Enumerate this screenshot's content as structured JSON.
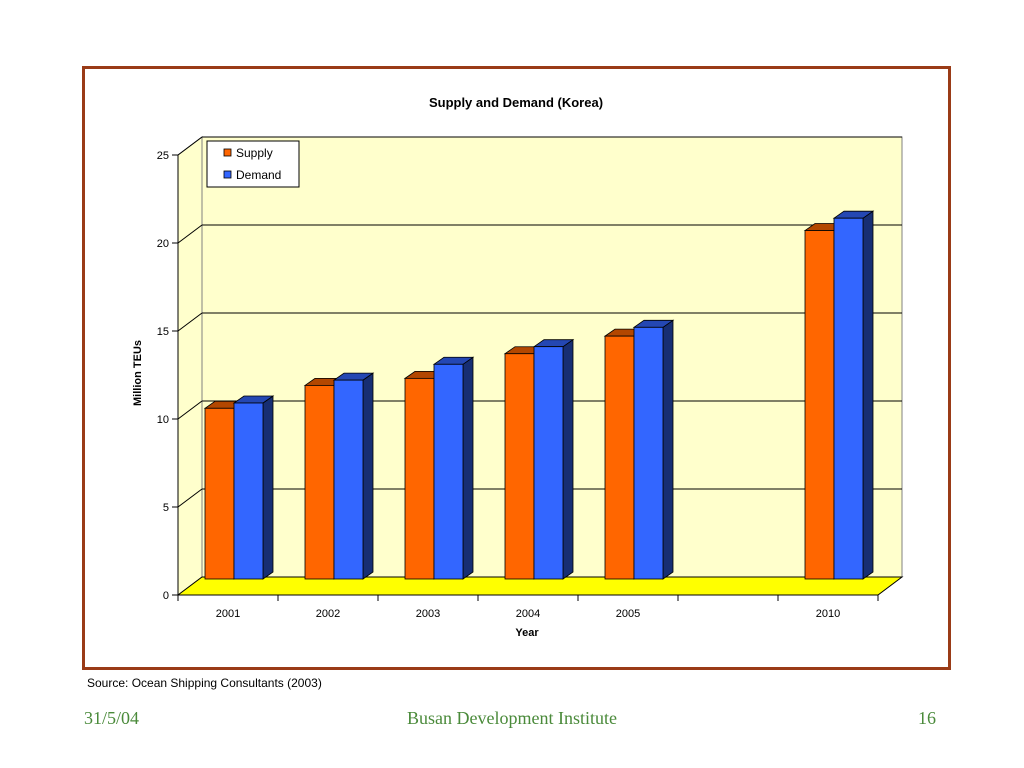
{
  "chart_data": {
    "type": "bar",
    "title": "Supply and Demand (Korea)",
    "xlabel": "Year",
    "ylabel": "Million TEUs",
    "categories": [
      "2001",
      "2002",
      "2003",
      "2004",
      "2005",
      "",
      "2010"
    ],
    "series": [
      {
        "name": "Supply",
        "values": [
          9.7,
          11.0,
          11.4,
          12.8,
          13.8,
          null,
          19.8
        ],
        "color": "#ff6600"
      },
      {
        "name": "Demand",
        "values": [
          10.0,
          11.3,
          12.2,
          13.2,
          14.3,
          null,
          20.5
        ],
        "color": "#3366ff"
      }
    ],
    "ylim": [
      0,
      25
    ],
    "yticks": [
      "0",
      "5",
      "10",
      "15",
      "20",
      "25"
    ],
    "grid": true,
    "legend": "top-left",
    "colors": {
      "plot_background": "#ffffcc",
      "floor": "#ffff00",
      "frame_border": "#9a3b17"
    }
  },
  "source": "Source: Ocean Shipping Consultants (2003)",
  "footer": {
    "date": "31/5/04",
    "organization": "Busan Development Institute",
    "page": "16"
  }
}
